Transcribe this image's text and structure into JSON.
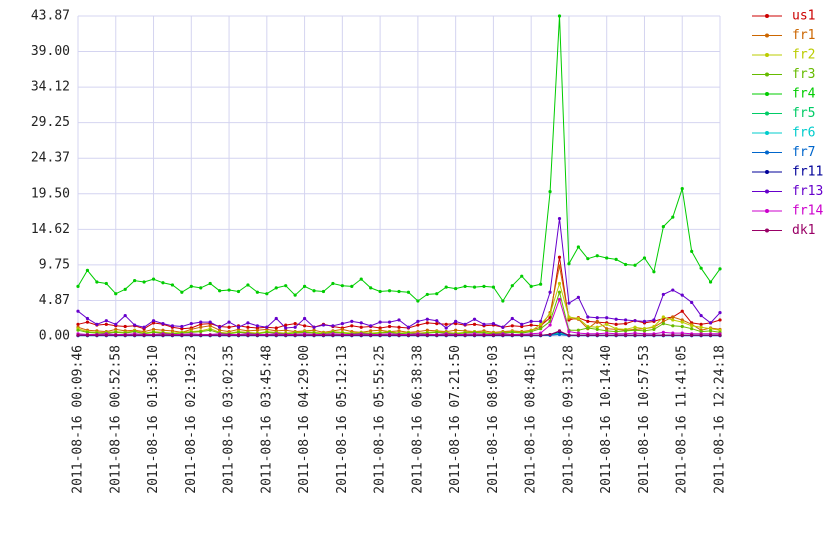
{
  "chart_data": {
    "type": "line",
    "categories": [
      "2011-08-16 00:09:46",
      null,
      null,
      null,
      "2011-08-16 00:52:58",
      null,
      null,
      null,
      "2011-08-16 01:36:10",
      null,
      null,
      null,
      "2011-08-16 02:19:23",
      null,
      null,
      null,
      "2011-08-16 03:02:35",
      null,
      null,
      null,
      "2011-08-16 03:45:48",
      null,
      null,
      null,
      "2011-08-16 04:29:00",
      null,
      null,
      null,
      "2011-08-16 05:12:13",
      null,
      null,
      null,
      "2011-08-16 05:55:25",
      null,
      null,
      null,
      "2011-08-16 06:38:38",
      null,
      null,
      null,
      "2011-08-16 07:21:50",
      null,
      null,
      null,
      "2011-08-16 08:05:03",
      null,
      null,
      null,
      "2011-08-16 08:48:15",
      null,
      null,
      null,
      "2011-08-16 09:31:28",
      null,
      null,
      null,
      "2011-08-16 10:14:40",
      null,
      null,
      null,
      "2011-08-16 10:57:53",
      null,
      null,
      null,
      "2011-08-16 11:41:05",
      null,
      null,
      null,
      "2011-08-16 12:24:18"
    ],
    "ylim": [
      0,
      43.87
    ],
    "yticks": [
      {
        "value": 0,
        "label": "0.00"
      },
      4.87,
      9.75,
      14.62,
      {
        "value": 19.5,
        "label": "19.50"
      },
      24.37,
      29.25,
      34.12,
      {
        "value": 39,
        "label": "39.00"
      },
      43.87
    ],
    "grid": true,
    "legend": "right",
    "series": [
      {
        "name": "fr4",
        "color": "#00cc00",
        "values": [
          6.8,
          9.0,
          7.4,
          7.2,
          5.8,
          6.4,
          7.6,
          7.4,
          7.8,
          7.3,
          7.0,
          6.0,
          6.8,
          6.6,
          7.2,
          6.2,
          6.3,
          6.1,
          7.0,
          6.0,
          5.8,
          6.6,
          6.9,
          5.6,
          6.8,
          6.2,
          6.1,
          7.2,
          6.9,
          6.8,
          7.8,
          6.6,
          6.1,
          6.2,
          6.1,
          6.0,
          4.8,
          5.7,
          5.8,
          6.7,
          6.5,
          6.8,
          6.7,
          6.8,
          6.7,
          4.8,
          6.9,
          8.2,
          6.8,
          7.1,
          19.8,
          43.87,
          9.9,
          12.2,
          10.6,
          11.0,
          10.7,
          10.5,
          9.8,
          9.7,
          10.7,
          8.8,
          15.0,
          16.3,
          20.2,
          11.6,
          9.3,
          7.4,
          9.2
        ]
      },
      {
        "name": "us1",
        "color": "#cc0000",
        "values": [
          1.6,
          1.9,
          1.5,
          1.6,
          1.4,
          1.3,
          1.4,
          1.0,
          1.8,
          1.6,
          1.2,
          1.0,
          1.1,
          1.6,
          1.7,
          1.3,
          1.2,
          1.4,
          1.2,
          1.1,
          1.2,
          1.1,
          1.5,
          1.7,
          1.4,
          1.2,
          1.6,
          1.3,
          1.1,
          1.4,
          1.2,
          1.3,
          1.1,
          1.3,
          1.2,
          1.1,
          1.5,
          1.8,
          1.7,
          1.6,
          1.7,
          1.5,
          1.6,
          1.4,
          1.5,
          1.2,
          1.4,
          1.3,
          1.5,
          1.4,
          2.5,
          10.8,
          2.2,
          2.5,
          2.0,
          1.9,
          1.8,
          1.6,
          1.7,
          2.1,
          1.8,
          2.0,
          2.4,
          2.6,
          3.4,
          1.8,
          1.6,
          1.8,
          2.2
        ]
      },
      {
        "name": "fr1",
        "color": "#cc6600",
        "values": [
          1.2,
          0.8,
          0.7,
          0.6,
          0.9,
          0.7,
          0.8,
          0.6,
          0.9,
          0.8,
          0.7,
          0.5,
          0.9,
          1.2,
          1.4,
          0.8,
          0.6,
          0.9,
          0.7,
          0.8,
          0.9,
          0.7,
          0.8,
          0.6,
          0.7,
          0.8,
          0.5,
          0.7,
          0.9,
          0.6,
          0.5,
          0.7,
          0.8,
          0.6,
          0.7,
          0.5,
          0.6,
          0.8,
          0.7,
          0.6,
          0.8,
          0.7,
          0.6,
          0.7,
          0.5,
          0.6,
          0.7,
          0.6,
          0.8,
          1.2,
          3.2,
          9.6,
          2.4,
          2.3,
          1.0,
          2.0,
          1.0,
          0.9,
          0.8,
          0.9,
          1.0,
          1.2,
          2.0,
          2.6,
          2.2,
          1.6,
          0.8,
          1.1,
          0.9
        ]
      },
      {
        "name": "fr2",
        "color": "#bbcc00",
        "values": [
          1.0,
          0.6,
          0.5,
          0.5,
          0.6,
          0.5,
          0.7,
          0.4,
          0.6,
          0.5,
          0.4,
          0.5,
          0.6,
          0.7,
          1.0,
          0.5,
          0.4,
          0.6,
          0.5,
          0.4,
          0.6,
          0.5,
          0.4,
          0.5,
          0.6,
          0.5,
          0.4,
          0.6,
          0.5,
          0.4,
          0.5,
          0.4,
          0.5,
          0.6,
          0.4,
          0.5,
          0.4,
          0.5,
          0.6,
          0.5,
          0.4,
          0.5,
          0.6,
          0.5,
          0.4,
          0.5,
          0.6,
          0.5,
          0.7,
          1.6,
          3.0,
          7.2,
          2.6,
          2.4,
          1.3,
          1.2,
          1.6,
          1.0,
          0.9,
          1.2,
          1.0,
          1.3,
          2.6,
          2.2,
          1.9,
          1.4,
          1.2,
          1.0,
          0.8
        ]
      },
      {
        "name": "fr3",
        "color": "#66bb00",
        "values": [
          0.8,
          0.5,
          0.4,
          0.4,
          0.5,
          0.4,
          0.6,
          0.3,
          0.5,
          0.4,
          0.3,
          0.4,
          0.5,
          0.6,
          0.8,
          0.4,
          0.3,
          0.5,
          0.4,
          0.3,
          0.5,
          0.4,
          0.3,
          0.4,
          0.5,
          0.4,
          0.3,
          0.5,
          0.4,
          0.3,
          0.4,
          0.3,
          0.4,
          0.5,
          0.3,
          0.4,
          0.3,
          0.4,
          0.5,
          0.4,
          0.3,
          0.4,
          0.5,
          0.4,
          0.3,
          0.4,
          0.5,
          0.4,
          0.6,
          1.0,
          2.0,
          6.0,
          0.8,
          0.8,
          1.1,
          0.9,
          0.7,
          0.6,
          0.7,
          0.8,
          0.7,
          0.9,
          1.7,
          1.4,
          1.3,
          1.0,
          0.6,
          0.7,
          0.5
        ]
      },
      {
        "name": "fr5",
        "color": "#00cc66",
        "values": [
          0.1,
          0.1,
          0.1,
          0.1,
          0.1,
          0.1,
          0.1,
          0.1,
          0.1,
          0.1,
          0.1,
          0.1,
          0.1,
          0.1,
          0.1,
          0.1,
          0.1,
          0.1,
          0.1,
          0.1,
          0.1,
          0.1,
          0.1,
          0.1,
          0.1,
          0.1,
          0.1,
          0.1,
          0.1,
          0.1,
          0.1,
          0.1,
          0.1,
          0.1,
          0.1,
          0.1,
          0.1,
          0.1,
          0.1,
          0.1,
          0.1,
          0.1,
          0.1,
          0.1,
          0.1,
          0.1,
          0.1,
          0.1,
          0.1,
          0.1,
          0.2,
          0.4,
          0.1,
          0.1,
          0.1,
          0.1,
          0.1,
          0.1,
          0.1,
          0.1,
          0.1,
          0.1,
          0.1,
          0.1,
          0.1,
          0.1,
          0.1,
          0.1,
          0.1
        ]
      },
      {
        "name": "fr6",
        "color": "#00cccc",
        "values": [
          0.05,
          0.05,
          0.05,
          0.05,
          0.05,
          0.05,
          0.05,
          0.05,
          0.05,
          0.05,
          0.05,
          0.05,
          0.05,
          0.05,
          0.05,
          0.05,
          0.05,
          0.05,
          0.05,
          0.05,
          0.05,
          0.05,
          0.05,
          0.05,
          0.05,
          0.05,
          0.05,
          0.05,
          0.05,
          0.05,
          0.05,
          0.05,
          0.05,
          0.05,
          0.05,
          0.05,
          0.05,
          0.05,
          0.05,
          0.05,
          0.05,
          0.05,
          0.05,
          0.05,
          0.05,
          0.05,
          0.05,
          0.05,
          0.05,
          0.05,
          0.1,
          0.3,
          0.05,
          0.05,
          0.05,
          0.05,
          0.05,
          0.05,
          0.05,
          0.05,
          0.05,
          0.05,
          0.05,
          0.05,
          0.05,
          0.05,
          0.05,
          0.05,
          0.05
        ]
      },
      {
        "name": "fr7",
        "color": "#0066cc",
        "values": [
          0.05,
          0.05,
          0.05,
          0.05,
          0.05,
          0.05,
          0.05,
          0.05,
          0.05,
          0.05,
          0.05,
          0.05,
          0.05,
          0.05,
          0.05,
          0.05,
          0.05,
          0.05,
          0.05,
          0.05,
          0.05,
          0.05,
          0.05,
          0.05,
          0.05,
          0.05,
          0.05,
          0.05,
          0.05,
          0.05,
          0.05,
          0.05,
          0.05,
          0.05,
          0.05,
          0.05,
          0.05,
          0.05,
          0.05,
          0.05,
          0.05,
          0.05,
          0.05,
          0.05,
          0.05,
          0.05,
          0.05,
          0.05,
          0.05,
          0.05,
          0.1,
          0.2,
          0.05,
          0.05,
          0.05,
          0.05,
          0.05,
          0.05,
          0.05,
          0.05,
          0.05,
          0.05,
          0.05,
          0.05,
          0.05,
          0.05,
          0.05,
          0.05,
          0.05
        ]
      },
      {
        "name": "fr11",
        "color": "#000099",
        "values": [
          0.1,
          0.1,
          0.1,
          0.1,
          0.1,
          0.1,
          0.1,
          0.1,
          0.1,
          0.1,
          0.1,
          0.1,
          0.1,
          0.1,
          0.1,
          0.1,
          0.1,
          0.1,
          0.1,
          0.1,
          0.1,
          0.1,
          0.1,
          0.1,
          0.1,
          0.1,
          0.1,
          0.1,
          0.1,
          0.1,
          0.1,
          0.1,
          0.1,
          0.1,
          0.1,
          0.1,
          0.1,
          0.1,
          0.1,
          0.1,
          0.1,
          0.1,
          0.1,
          0.1,
          0.1,
          0.1,
          0.1,
          0.1,
          0.1,
          0.1,
          0.2,
          0.6,
          0.1,
          0.1,
          0.1,
          0.1,
          0.1,
          0.1,
          0.1,
          0.1,
          0.1,
          0.1,
          0.1,
          0.1,
          0.1,
          0.1,
          0.1,
          0.1,
          0.1
        ]
      },
      {
        "name": "fr13",
        "color": "#6600cc",
        "values": [
          3.4,
          2.4,
          1.6,
          2.1,
          1.6,
          2.8,
          1.5,
          1.2,
          2.1,
          1.7,
          1.4,
          1.3,
          1.7,
          1.9,
          1.9,
          1.2,
          1.9,
          1.2,
          1.8,
          1.4,
          1.2,
          2.4,
          1.1,
          1.2,
          2.4,
          1.2,
          1.5,
          1.4,
          1.7,
          2.0,
          1.8,
          1.4,
          1.9,
          1.9,
          2.2,
          1.2,
          2.0,
          2.3,
          2.1,
          1.1,
          2.0,
          1.6,
          2.3,
          1.6,
          1.7,
          1.2,
          2.4,
          1.6,
          2.0,
          2.0,
          6.0,
          16.1,
          4.5,
          5.3,
          2.6,
          2.5,
          2.5,
          2.3,
          2.2,
          2.1,
          2.0,
          2.2,
          5.7,
          6.3,
          5.6,
          4.6,
          2.8,
          1.8,
          3.2
        ]
      },
      {
        "name": "fr14",
        "color": "#cc00cc",
        "values": [
          0.3,
          0.2,
          0.2,
          0.3,
          0.2,
          0.2,
          0.3,
          0.2,
          0.2,
          0.3,
          0.2,
          0.2,
          0.3,
          0.2,
          0.2,
          0.3,
          0.2,
          0.2,
          0.3,
          0.2,
          0.2,
          0.3,
          0.2,
          0.2,
          0.3,
          0.2,
          0.2,
          0.3,
          0.2,
          0.2,
          0.3,
          0.2,
          0.2,
          0.3,
          0.2,
          0.2,
          0.3,
          0.2,
          0.2,
          0.3,
          0.2,
          0.2,
          0.3,
          0.2,
          0.2,
          0.3,
          0.2,
          0.2,
          0.3,
          0.4,
          1.5,
          5.0,
          0.6,
          0.4,
          0.3,
          0.3,
          0.4,
          0.3,
          0.3,
          0.4,
          0.3,
          0.3,
          0.5,
          0.4,
          0.4,
          0.3,
          0.3,
          0.3,
          0.3
        ]
      },
      {
        "name": "dk1",
        "color": "#990066",
        "values": [
          0.1,
          0.1,
          0.1,
          0.1,
          0.1,
          0.1,
          0.1,
          0.1,
          0.1,
          0.1,
          0.1,
          0.1,
          0.1,
          0.1,
          0.1,
          0.1,
          0.1,
          0.1,
          0.1,
          0.1,
          0.1,
          0.1,
          0.1,
          0.1,
          0.1,
          0.1,
          0.1,
          0.1,
          0.1,
          0.1,
          0.1,
          0.1,
          0.1,
          0.1,
          0.1,
          0.1,
          0.1,
          0.1,
          0.1,
          0.1,
          0.1,
          0.1,
          0.1,
          0.1,
          0.1,
          0.1,
          0.1,
          0.1,
          0.1,
          0.1,
          0.2,
          0.7,
          0.1,
          0.1,
          0.1,
          0.1,
          0.1,
          0.1,
          0.1,
          0.1,
          0.1,
          0.1,
          0.1,
          0.1,
          0.1,
          0.1,
          0.1,
          0.1,
          0.1
        ]
      }
    ]
  }
}
